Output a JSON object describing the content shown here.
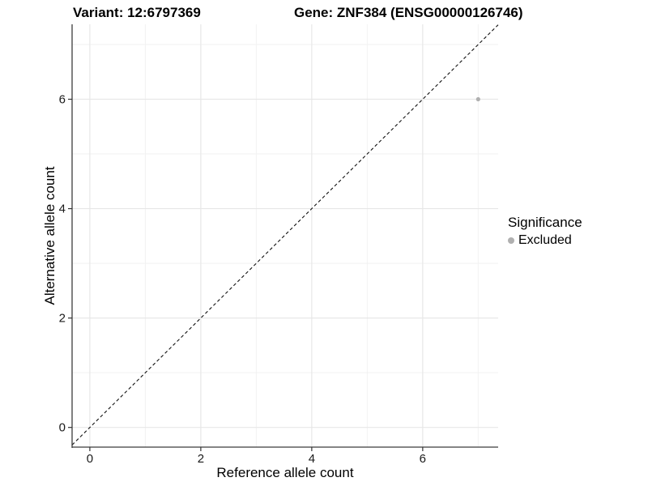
{
  "header": {
    "variant_title": "Variant: 12:6797369",
    "gene_title": "Gene: ZNF384 (ENSG00000126746)"
  },
  "legend": {
    "title": "Significance",
    "entries": [
      {
        "label": "Excluded",
        "color": "#b0b0b0"
      }
    ]
  },
  "chart_data": {
    "type": "scatter",
    "title": "Variant: 12:6797369  |  Gene: ZNF384 (ENSG00000126746)",
    "xlabel": "Reference allele count",
    "ylabel": "Alternative allele count",
    "xlim": [
      -0.32,
      7.36
    ],
    "ylim": [
      -0.36,
      7.37
    ],
    "x_ticks": [
      0,
      2,
      4,
      6
    ],
    "y_ticks": [
      0,
      2,
      4,
      6
    ],
    "x_minor": [
      1,
      3,
      5,
      7
    ],
    "y_minor": [
      1,
      3,
      5,
      7
    ],
    "grid": true,
    "legend_position": "right",
    "identity_line": {
      "slope": 1,
      "intercept": 0,
      "style": "dashed",
      "color": "#111111"
    },
    "series": [
      {
        "name": "Excluded",
        "points": [
          {
            "x": 7,
            "y": 6
          }
        ],
        "color": "#b0b0b0",
        "marker_radius": 2.6
      }
    ],
    "colors": {
      "axis_line": "#3c3c3c",
      "tick_mark": "#333333",
      "grid_major": "#e7e7e7",
      "grid_minor": "#f2f2f2",
      "background": "#ffffff",
      "point_gray": "#b0b0b0"
    }
  }
}
